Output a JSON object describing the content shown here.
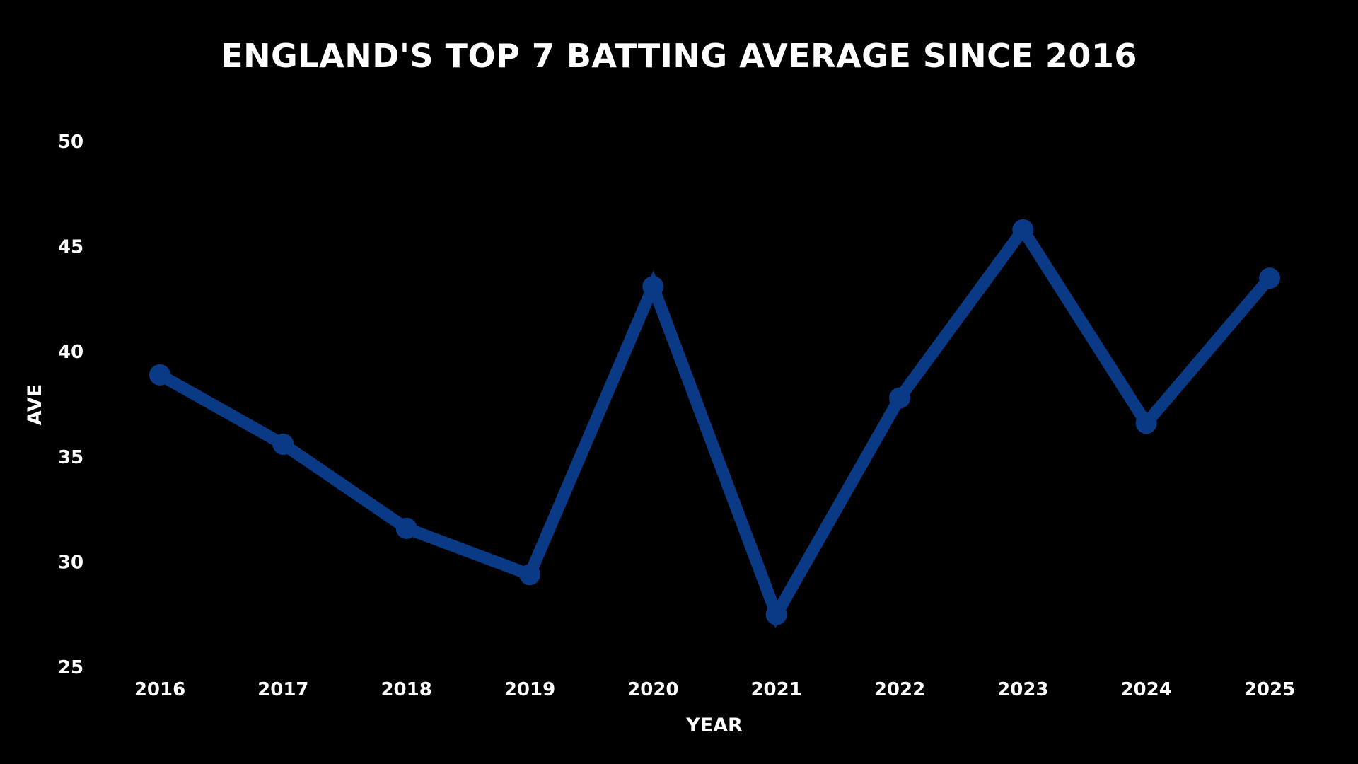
{
  "chart_data": {
    "type": "line",
    "title": "ENGLAND'S TOP 7 BATTING AVERAGE SINCE 2016",
    "xlabel": "YEAR",
    "ylabel": "AVE",
    "categories": [
      "2016",
      "2017",
      "2018",
      "2019",
      "2020",
      "2021",
      "2022",
      "2023",
      "2024",
      "2025"
    ],
    "series": [
      {
        "values": [
          38.9,
          35.6,
          31.6,
          29.4,
          43.1,
          27.5,
          37.8,
          45.8,
          36.6,
          43.5
        ]
      }
    ],
    "ylim": [
      25,
      50
    ],
    "yticks": [
      25,
      30,
      35,
      40,
      45,
      50
    ],
    "grid": false,
    "legend": "none",
    "colors": {
      "background": "#000000",
      "line": "#0a3a85",
      "text": "#ffffff"
    }
  }
}
